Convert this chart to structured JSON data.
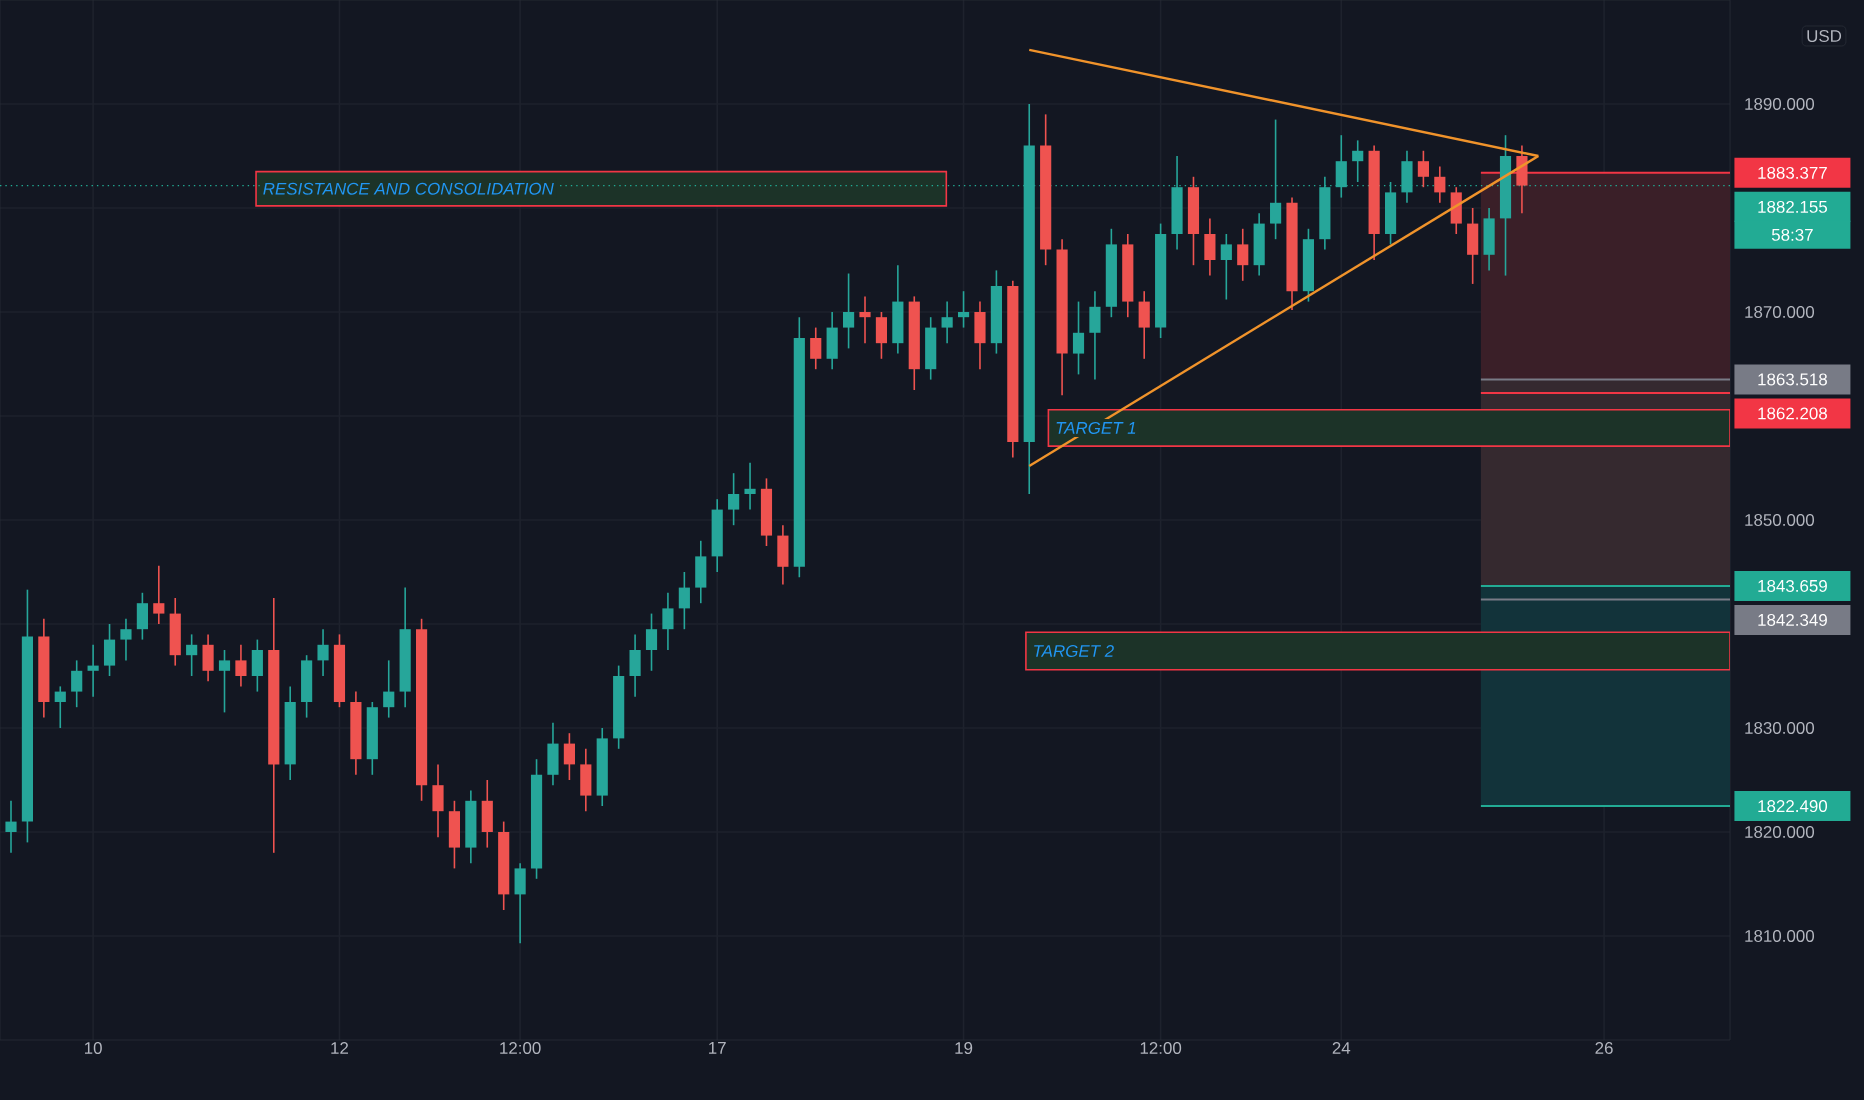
{
  "chart_data": {
    "type": "candlestick",
    "ylabel": "USD",
    "categories": [
      null,
      null,
      null,
      null,
      null,
      "10",
      null,
      null,
      null,
      null,
      null,
      null,
      null,
      null,
      null,
      null,
      null,
      null,
      null,
      null,
      "12",
      null,
      null,
      null,
      null,
      null,
      null,
      null,
      null,
      null,
      null,
      "12:00",
      null,
      null,
      null,
      null,
      null,
      null,
      null,
      null,
      null,
      null,
      null,
      "17",
      null,
      null,
      null,
      null,
      null,
      null,
      null,
      null,
      null,
      null,
      null,
      null,
      null,
      null,
      "19",
      null,
      null,
      null,
      null,
      null,
      null,
      null,
      null,
      null,
      null,
      null,
      "12:00",
      null,
      null,
      null,
      null,
      null,
      null,
      null,
      null,
      null,
      null,
      "24",
      null,
      null,
      null,
      null,
      null,
      null,
      null,
      null,
      null,
      null,
      null,
      null,
      null,
      null,
      null,
      "26",
      null,
      null,
      null,
      null,
      null,
      null,
      null
    ],
    "ohlc": [
      [
        1820,
        1823,
        1818,
        1821
      ],
      [
        1821,
        1843.3,
        1819,
        1838.8
      ],
      [
        1838.8,
        1840.5,
        1831,
        1832.5
      ],
      [
        1832.5,
        1834,
        1830,
        1833.5
      ],
      [
        1833.5,
        1836.5,
        1832,
        1835.5
      ],
      [
        1835.5,
        1838,
        1833,
        1836
      ],
      [
        1836,
        1840,
        1835,
        1838.5
      ],
      [
        1838.5,
        1840.5,
        1836.5,
        1839.5
      ],
      [
        1839.5,
        1843,
        1838.5,
        1842
      ],
      [
        1842,
        1845.6,
        1840,
        1841
      ],
      [
        1841,
        1842.5,
        1836,
        1837
      ],
      [
        1837,
        1839,
        1835,
        1838
      ],
      [
        1838,
        1839,
        1834.5,
        1835.5
      ],
      [
        1835.5,
        1837.5,
        1831.5,
        1836.5
      ],
      [
        1836.5,
        1838,
        1834,
        1835
      ],
      [
        1835,
        1838.5,
        1833.5,
        1837.5
      ],
      [
        1837.5,
        1842.5,
        1818,
        1826.5
      ],
      [
        1826.5,
        1834,
        1825,
        1832.5
      ],
      [
        1832.5,
        1837,
        1831,
        1836.5
      ],
      [
        1836.5,
        1839.5,
        1835,
        1838
      ],
      [
        1838,
        1839,
        1832,
        1832.5
      ],
      [
        1832.5,
        1833.5,
        1825.5,
        1827
      ],
      [
        1827,
        1832.5,
        1825.5,
        1832
      ],
      [
        1832,
        1836.5,
        1831,
        1833.5
      ],
      [
        1833.5,
        1843.5,
        1832,
        1839.5
      ],
      [
        1839.5,
        1840.5,
        1823,
        1824.5
      ],
      [
        1824.5,
        1826.5,
        1819.5,
        1822
      ],
      [
        1822,
        1823,
        1816.5,
        1818.5
      ],
      [
        1818.5,
        1824,
        1817,
        1823
      ],
      [
        1823,
        1825,
        1818.5,
        1820
      ],
      [
        1820,
        1821,
        1812.5,
        1814
      ],
      [
        1814,
        1817,
        1809.3,
        1816.5
      ],
      [
        1816.5,
        1827,
        1815.5,
        1825.5
      ],
      [
        1825.5,
        1830.5,
        1824.5,
        1828.5
      ],
      [
        1828.5,
        1829.5,
        1825,
        1826.5
      ],
      [
        1826.5,
        1828,
        1822,
        1823.5
      ],
      [
        1823.5,
        1830,
        1822.5,
        1829
      ],
      [
        1829,
        1836,
        1828,
        1835
      ],
      [
        1835,
        1839,
        1833,
        1837.5
      ],
      [
        1837.5,
        1841,
        1835.5,
        1839.5
      ],
      [
        1839.5,
        1843,
        1837.5,
        1841.5
      ],
      [
        1841.5,
        1845,
        1839.5,
        1843.5
      ],
      [
        1843.5,
        1848,
        1842,
        1846.5
      ],
      [
        1846.5,
        1852,
        1845,
        1851
      ],
      [
        1851,
        1854.5,
        1849.5,
        1852.5
      ],
      [
        1852.5,
        1855.5,
        1851,
        1853
      ],
      [
        1853,
        1854,
        1847.5,
        1848.5
      ],
      [
        1848.5,
        1849.5,
        1843.8,
        1845.5
      ],
      [
        1845.5,
        1869.5,
        1844.5,
        1867.5
      ],
      [
        1867.5,
        1868.5,
        1864.5,
        1865.5
      ],
      [
        1865.5,
        1870,
        1864.5,
        1868.5
      ],
      [
        1868.5,
        1873.7,
        1866.5,
        1870
      ],
      [
        1870,
        1871.5,
        1867,
        1869.5
      ],
      [
        1869.5,
        1870,
        1865.5,
        1867
      ],
      [
        1867,
        1874.5,
        1866,
        1871
      ],
      [
        1871,
        1871.5,
        1862.5,
        1864.5
      ],
      [
        1864.5,
        1869.5,
        1863.5,
        1868.5
      ],
      [
        1868.5,
        1871,
        1867,
        1869.5
      ],
      [
        1869.5,
        1872,
        1868.5,
        1870
      ],
      [
        1870,
        1871,
        1864.5,
        1867
      ],
      [
        1867,
        1874,
        1866,
        1872.5
      ],
      [
        1872.5,
        1873,
        1856,
        1857.5
      ],
      [
        1857.5,
        1890,
        1852.5,
        1886
      ],
      [
        1886,
        1889,
        1874.5,
        1876
      ],
      [
        1876,
        1877,
        1862,
        1866
      ],
      [
        1866,
        1871,
        1864,
        1868
      ],
      [
        1868,
        1872,
        1863.5,
        1870.5
      ],
      [
        1870.5,
        1878,
        1869.5,
        1876.5
      ],
      [
        1876.5,
        1877.5,
        1869.5,
        1871
      ],
      [
        1871,
        1872,
        1865.5,
        1868.5
      ],
      [
        1868.5,
        1878.5,
        1867.5,
        1877.5
      ],
      [
        1877.5,
        1885,
        1876,
        1882
      ],
      [
        1882,
        1883,
        1874.5,
        1877.5
      ],
      [
        1877.5,
        1879,
        1873.5,
        1875
      ],
      [
        1875,
        1877.5,
        1871.2,
        1876.5
      ],
      [
        1876.5,
        1878,
        1873,
        1874.5
      ],
      [
        1874.5,
        1879.5,
        1873.5,
        1878.5
      ],
      [
        1878.5,
        1888.5,
        1877,
        1880.5
      ],
      [
        1880.5,
        1881,
        1870.2,
        1872
      ],
      [
        1872,
        1878,
        1871,
        1877
      ],
      [
        1877,
        1883,
        1876,
        1882
      ],
      [
        1882,
        1887,
        1881,
        1884.5
      ],
      [
        1884.5,
        1886.5,
        1882.5,
        1885.5
      ],
      [
        1885.5,
        1886,
        1875,
        1877.5
      ],
      [
        1877.5,
        1882.5,
        1876.5,
        1881.5
      ],
      [
        1881.5,
        1885.5,
        1880.5,
        1884.5
      ],
      [
        1884.5,
        1885.5,
        1882,
        1883
      ],
      [
        1883,
        1884,
        1880.5,
        1881.5
      ],
      [
        1881.5,
        1882,
        1877.5,
        1878.5
      ],
      [
        1878.5,
        1880,
        1872.7,
        1875.5
      ],
      [
        1875.5,
        1880,
        1874,
        1879
      ],
      [
        1879,
        1887,
        1873.5,
        1885
      ],
      [
        1885,
        1886,
        1879.5,
        1882.155
      ],
      null,
      null,
      null,
      null,
      null,
      null,
      null,
      null,
      null,
      null,
      null,
      null
    ],
    "colors": [
      "#26a69a",
      "#26a69a",
      "#ef5350",
      "#26a69a",
      "#26a69a",
      "#26a69a",
      "#26a69a",
      "#26a69a",
      "#26a69a",
      "#ef5350",
      "#ef5350",
      "#26a69a",
      "#ef5350",
      "#26a69a",
      "#ef5350",
      "#26a69a",
      "#ef5350",
      "#26a69a",
      "#26a69a",
      "#26a69a",
      "#ef5350",
      "#ef5350",
      "#26a69a",
      "#26a69a",
      "#26a69a",
      "#ef5350",
      "#ef5350",
      "#ef5350",
      "#26a69a",
      "#ef5350",
      "#ef5350",
      "#26a69a",
      "#26a69a",
      "#26a69a",
      "#ef5350",
      "#ef5350",
      "#26a69a",
      "#26a69a",
      "#26a69a",
      "#26a69a",
      "#26a69a",
      "#26a69a",
      "#26a69a",
      "#26a69a",
      "#26a69a",
      "#26a69a",
      "#ef5350",
      "#ef5350",
      "#26a69a",
      "#ef5350",
      "#26a69a",
      "#26a69a",
      "#ef5350",
      "#ef5350",
      "#26a69a",
      "#ef5350",
      "#26a69a",
      "#26a69a",
      "#26a69a",
      "#ef5350",
      "#26a69a",
      "#ef5350",
      "#26a69a",
      "#ef5350",
      "#ef5350",
      "#26a69a",
      "#26a69a",
      "#26a69a",
      "#ef5350",
      "#ef5350",
      "#26a69a",
      "#26a69a",
      "#ef5350",
      "#ef5350",
      "#26a69a",
      "#ef5350",
      "#26a69a",
      "#26a69a",
      "#ef5350",
      "#26a69a",
      "#26a69a",
      "#26a69a",
      "#26a69a",
      "#ef5350",
      "#26a69a",
      "#26a69a",
      "#ef5350",
      "#ef5350",
      "#ef5350",
      "#ef5350",
      "#26a69a",
      "#26a69a",
      "#ef5350",
      null,
      null,
      null,
      null,
      null,
      null,
      null,
      null,
      null,
      null,
      null,
      null
    ],
    "series": [
      {
        "type": "line",
        "color": "#f0932b",
        "values": [
          null,
          null,
          null,
          null,
          null,
          null,
          null,
          null,
          null,
          null,
          null,
          null,
          null,
          null,
          null,
          null,
          null,
          null,
          null,
          null,
          null,
          null,
          null,
          null,
          null,
          null,
          null,
          null,
          null,
          null,
          null,
          null,
          null,
          null,
          null,
          null,
          null,
          null,
          null,
          null,
          null,
          null,
          null,
          null,
          null,
          null,
          null,
          null,
          null,
          null,
          null,
          null,
          null,
          null,
          null,
          null,
          null,
          null,
          null,
          null,
          null,
          null,
          1895.2,
          null,
          null,
          null,
          null,
          null,
          null,
          null,
          null,
          null,
          null,
          null,
          null,
          null,
          null,
          null,
          null,
          null,
          null,
          null,
          null,
          null,
          null,
          null,
          null,
          null,
          null,
          null,
          null,
          null,
          null,
          1885,
          null,
          null,
          null,
          null,
          null,
          null,
          null,
          null,
          null,
          null,
          null
        ]
      },
      {
        "type": "line",
        "color": "#f0932b",
        "values": [
          null,
          null,
          null,
          null,
          null,
          null,
          null,
          null,
          null,
          null,
          null,
          null,
          null,
          null,
          null,
          null,
          null,
          null,
          null,
          null,
          null,
          null,
          null,
          null,
          null,
          null,
          null,
          null,
          null,
          null,
          null,
          null,
          null,
          null,
          null,
          null,
          null,
          null,
          null,
          null,
          null,
          null,
          null,
          null,
          null,
          null,
          null,
          null,
          null,
          null,
          null,
          null,
          null,
          null,
          null,
          null,
          null,
          null,
          null,
          null,
          null,
          null,
          1855.2,
          null,
          null,
          null,
          null,
          null,
          null,
          null,
          null,
          null,
          null,
          null,
          null,
          null,
          null,
          null,
          null,
          null,
          null,
          null,
          null,
          null,
          null,
          null,
          null,
          null,
          null,
          null,
          null,
          null,
          null,
          1885,
          null,
          null,
          null,
          null,
          null,
          null,
          null,
          null,
          null,
          null,
          null
        ]
      }
    ],
    "ylim": [
      1800,
      1900
    ],
    "yticks": [
      {
        "value": 1810,
        "label": "1810.000"
      },
      {
        "value": 1820,
        "label": "1820.000"
      },
      {
        "value": 1830,
        "label": "1830.000"
      },
      {
        "value": 1840,
        "label": null
      },
      {
        "value": 1850,
        "label": "1850.000"
      },
      {
        "value": 1860,
        "label": null
      },
      {
        "value": 1870,
        "label": "1870.000"
      },
      {
        "value": 1880,
        "label": null
      },
      {
        "value": 1890,
        "label": "1890.000"
      }
    ],
    "grid": true,
    "bands": [
      {
        "axis": "y",
        "from": 1863.518,
        "to": 1883.377,
        "color": "#3a1f28"
      },
      {
        "axis": "y",
        "from": 1843.659,
        "to": 1863.518,
        "color": "#35292f"
      },
      {
        "axis": "y",
        "from": 1822.49,
        "to": 1843.659,
        "color": "#12333a"
      },
      {
        "axis": "y",
        "from": 1880.2,
        "to": 1883.5,
        "label": "RESISTANCE AND CONSOLIDATION",
        "color": "#1c3328"
      },
      {
        "axis": "y",
        "from": 1857.1,
        "to": 1860.6,
        "label": "TARGET 1",
        "color": "#1c3328"
      },
      {
        "axis": "y",
        "from": 1835.6,
        "to": 1839.2,
        "label": "TARGET 2",
        "color": "#1c3328"
      }
    ],
    "ref_lines": [
      {
        "axis": "y",
        "value": 1883.377,
        "label": "1883.377",
        "color": "#f23645"
      },
      {
        "axis": "y",
        "value": 1882.155,
        "label": "1882.155",
        "color": "#22ab94",
        "line_style": "dotted"
      },
      {
        "axis": "y",
        "value": 1863.518,
        "label": "1863.518",
        "color": "#787b86"
      },
      {
        "axis": "y",
        "value": 1862.208,
        "label": "1862.208",
        "color": "#f23645"
      },
      {
        "axis": "y",
        "value": 1843.659,
        "label": "1843.659",
        "color": "#22ab94"
      },
      {
        "axis": "y",
        "value": 1842.349,
        "label": "1842.349",
        "color": "#787b86"
      },
      {
        "axis": "y",
        "value": 1822.49,
        "label": "1822.490",
        "color": "#22ab94"
      }
    ],
    "annotations": [
      "58:37"
    ]
  }
}
